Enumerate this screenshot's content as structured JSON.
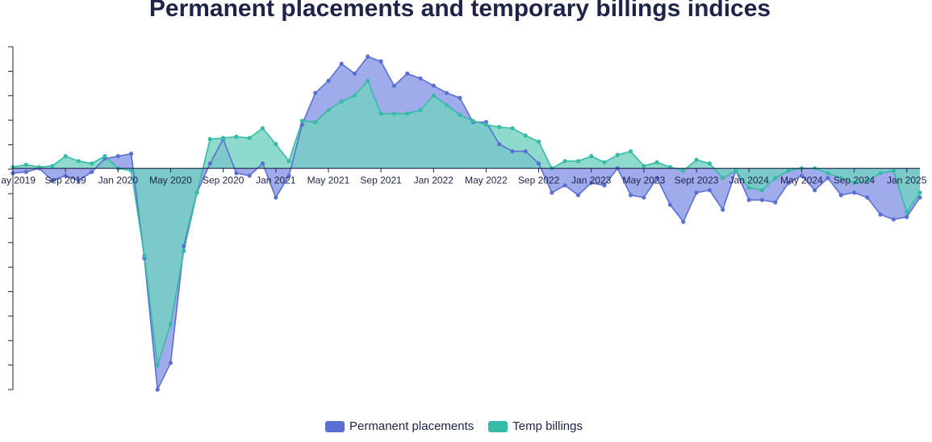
{
  "chart_data": {
    "type": "area",
    "title": "Permanent placements and temporary billings indices",
    "xlabel": "",
    "ylabel": "",
    "x_tick_labels": [
      "ay 2019",
      "Sep 2019",
      "Jan 2020",
      "May 2020",
      "Sep 2020",
      "Jan 2021",
      "May 2021",
      "Sep 2021",
      "Jan 2022",
      "May 2022",
      "Sep 2022",
      "Jan 2023",
      "May 2023",
      "Sept 2023",
      "Jan 2024",
      "May 2024",
      "Sep 2024",
      "Jan 2025"
    ],
    "x_tick_start_index": 0,
    "x_tick_step": 4,
    "ylim": [
      -91,
      50
    ],
    "baseline": 0,
    "grid": false,
    "legend_position": "bottom",
    "series": [
      {
        "name": "Permanent placements",
        "color": "#5b6fd3",
        "fill": "#9aa6ea",
        "values": [
          -2,
          -1.5,
          0,
          -5,
          -3,
          -5,
          -1.5,
          4,
          5,
          6,
          -37,
          -91,
          -80,
          -32,
          -10,
          2,
          12,
          -2,
          -3,
          2,
          -12,
          -3,
          18,
          31,
          36,
          43,
          39,
          46,
          44,
          34,
          39,
          37,
          34,
          31,
          29,
          19,
          19,
          10,
          7,
          7,
          2,
          -10,
          -7,
          -11,
          -6,
          -7,
          0,
          -11,
          -12,
          -4,
          -15,
          -22,
          -10,
          -9,
          -17,
          -1,
          -13,
          -13,
          -14,
          -6,
          -3,
          -9,
          -4,
          -11,
          -10,
          -12,
          -19,
          -21,
          -20,
          -12
        ]
      },
      {
        "name": "Temp billings",
        "color": "#36bba6",
        "fill": "#72d1bf",
        "values": [
          0.5,
          1.5,
          0.5,
          1,
          5,
          3,
          2,
          5,
          0,
          -1,
          -36,
          -81,
          -64,
          -34,
          -10,
          12,
          12.5,
          13,
          12.5,
          16.5,
          10,
          3,
          19.5,
          19,
          24,
          27.5,
          30,
          36,
          22.5,
          22.5,
          22.5,
          24,
          30,
          26,
          22,
          19.5,
          18,
          17,
          16.5,
          13.5,
          11,
          0,
          3,
          3,
          5,
          2.5,
          5.5,
          7,
          1,
          2.5,
          0.5,
          -1,
          3.5,
          2,
          -4,
          -1,
          -8,
          -9,
          -4,
          -1,
          0,
          0,
          -2,
          -4,
          -6,
          -5,
          -2,
          -1,
          -18,
          -10
        ]
      }
    ]
  },
  "legend": {
    "permanent_label": "Permanent placements",
    "temp_label": "Temp billings"
  }
}
